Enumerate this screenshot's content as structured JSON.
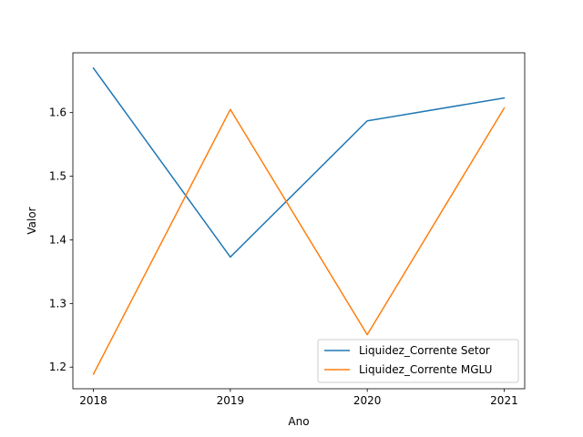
{
  "chart_data": {
    "type": "line",
    "title": "",
    "xlabel": "Ano",
    "ylabel": "Valor",
    "x": [
      2018,
      2019,
      2020,
      2021
    ],
    "xticks": [
      "2018",
      "2019",
      "2020",
      "2021"
    ],
    "xlim": [
      2017.85,
      2021.15
    ],
    "yticks": [
      1.2,
      1.3,
      1.4,
      1.5,
      1.6
    ],
    "ytick_labels": [
      "1.2",
      "1.3",
      "1.4",
      "1.5",
      "1.6"
    ],
    "ylim": [
      1.166,
      1.694
    ],
    "grid": false,
    "legend_position": "lower-right",
    "series": [
      {
        "name": "Liquidez_Corrente Setor",
        "color": "#1f77b4",
        "values": [
          1.67,
          1.373,
          1.587,
          1.623
        ]
      },
      {
        "name": "Liquidez_Corrente MGLU",
        "color": "#ff7f0e",
        "values": [
          1.189,
          1.605,
          1.251,
          1.607
        ]
      }
    ]
  }
}
